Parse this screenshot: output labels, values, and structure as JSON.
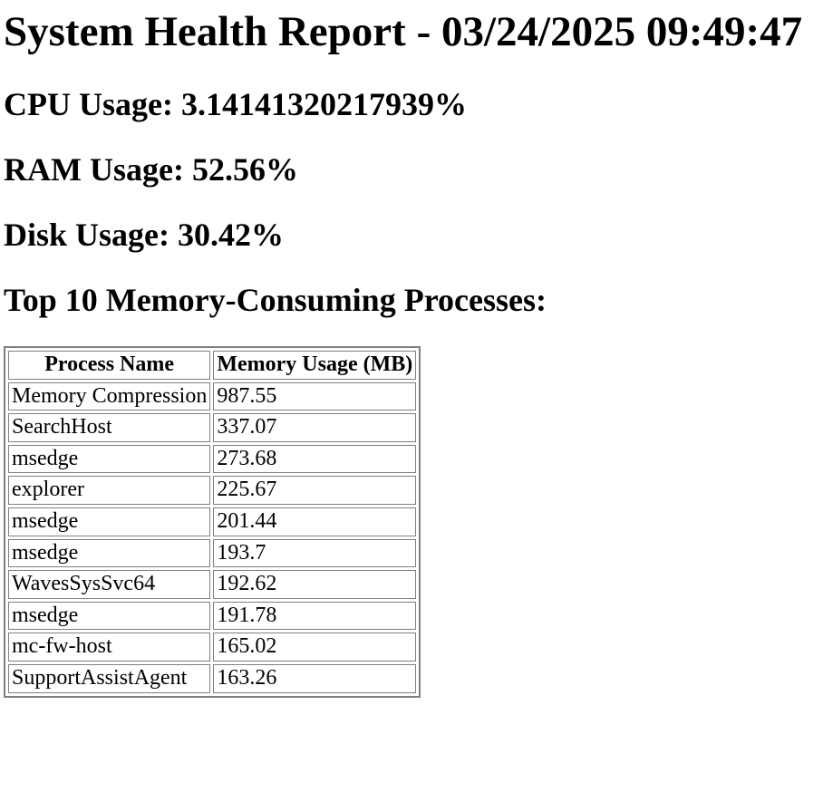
{
  "report": {
    "title": "System Health Report - 03/24/2025 09:49:47",
    "cpu_line": "CPU Usage: 3.14141320217939%",
    "ram_line": "RAM Usage: 52.56%",
    "disk_line": "Disk Usage: 30.42%",
    "processes_heading": "Top 10 Memory-Consuming Processes:",
    "table": {
      "headers": [
        "Process Name",
        "Memory Usage (MB)"
      ],
      "rows": [
        [
          "Memory Compression",
          "987.55"
        ],
        [
          "SearchHost",
          "337.07"
        ],
        [
          "msedge",
          "273.68"
        ],
        [
          "explorer",
          "225.67"
        ],
        [
          "msedge",
          "201.44"
        ],
        [
          "msedge",
          "193.7"
        ],
        [
          "WavesSysSvc64",
          "192.62"
        ],
        [
          "msedge",
          "191.78"
        ],
        [
          "mc-fw-host",
          "165.02"
        ],
        [
          "SupportAssistAgent",
          "163.26"
        ]
      ]
    }
  }
}
